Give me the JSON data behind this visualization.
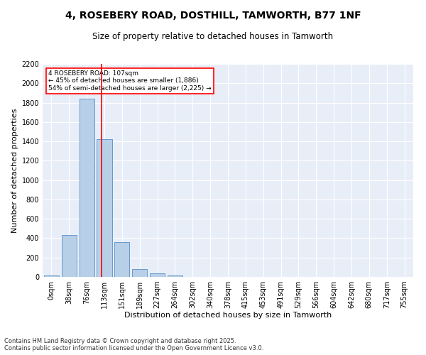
{
  "title_line1": "4, ROSEBERY ROAD, DOSTHILL, TAMWORTH, B77 1NF",
  "title_line2": "Size of property relative to detached houses in Tamworth",
  "xlabel": "Distribution of detached houses by size in Tamworth",
  "ylabel": "Number of detached properties",
  "bar_labels": [
    "0sqm",
    "38sqm",
    "76sqm",
    "113sqm",
    "151sqm",
    "189sqm",
    "227sqm",
    "264sqm",
    "302sqm",
    "340sqm",
    "378sqm",
    "415sqm",
    "453sqm",
    "491sqm",
    "529sqm",
    "566sqm",
    "604sqm",
    "642sqm",
    "680sqm",
    "717sqm",
    "755sqm"
  ],
  "bar_values": [
    15,
    430,
    1840,
    1420,
    360,
    80,
    35,
    15,
    0,
    0,
    0,
    0,
    0,
    0,
    0,
    0,
    0,
    0,
    0,
    0,
    0
  ],
  "bar_color": "#b8cfe8",
  "bar_edge_color": "#6699cc",
  "vline_x": 2.83,
  "vline_color": "red",
  "annotation_text": "4 ROSEBERY ROAD: 107sqm\n← 45% of detached houses are smaller (1,886)\n54% of semi-detached houses are larger (2,225) →",
  "annotation_box_color": "red",
  "annotation_fill": "white",
  "ylim": [
    0,
    2200
  ],
  "yticks": [
    0,
    200,
    400,
    600,
    800,
    1000,
    1200,
    1400,
    1600,
    1800,
    2000,
    2200
  ],
  "background_color": "#e8eef8",
  "grid_color": "#ffffff",
  "footer_line1": "Contains HM Land Registry data © Crown copyright and database right 2025.",
  "footer_line2": "Contains public sector information licensed under the Open Government Licence v3.0.",
  "title_fontsize": 10,
  "subtitle_fontsize": 8.5,
  "axis_label_fontsize": 8,
  "tick_fontsize": 7,
  "annotation_fontsize": 6.5,
  "footer_fontsize": 6
}
